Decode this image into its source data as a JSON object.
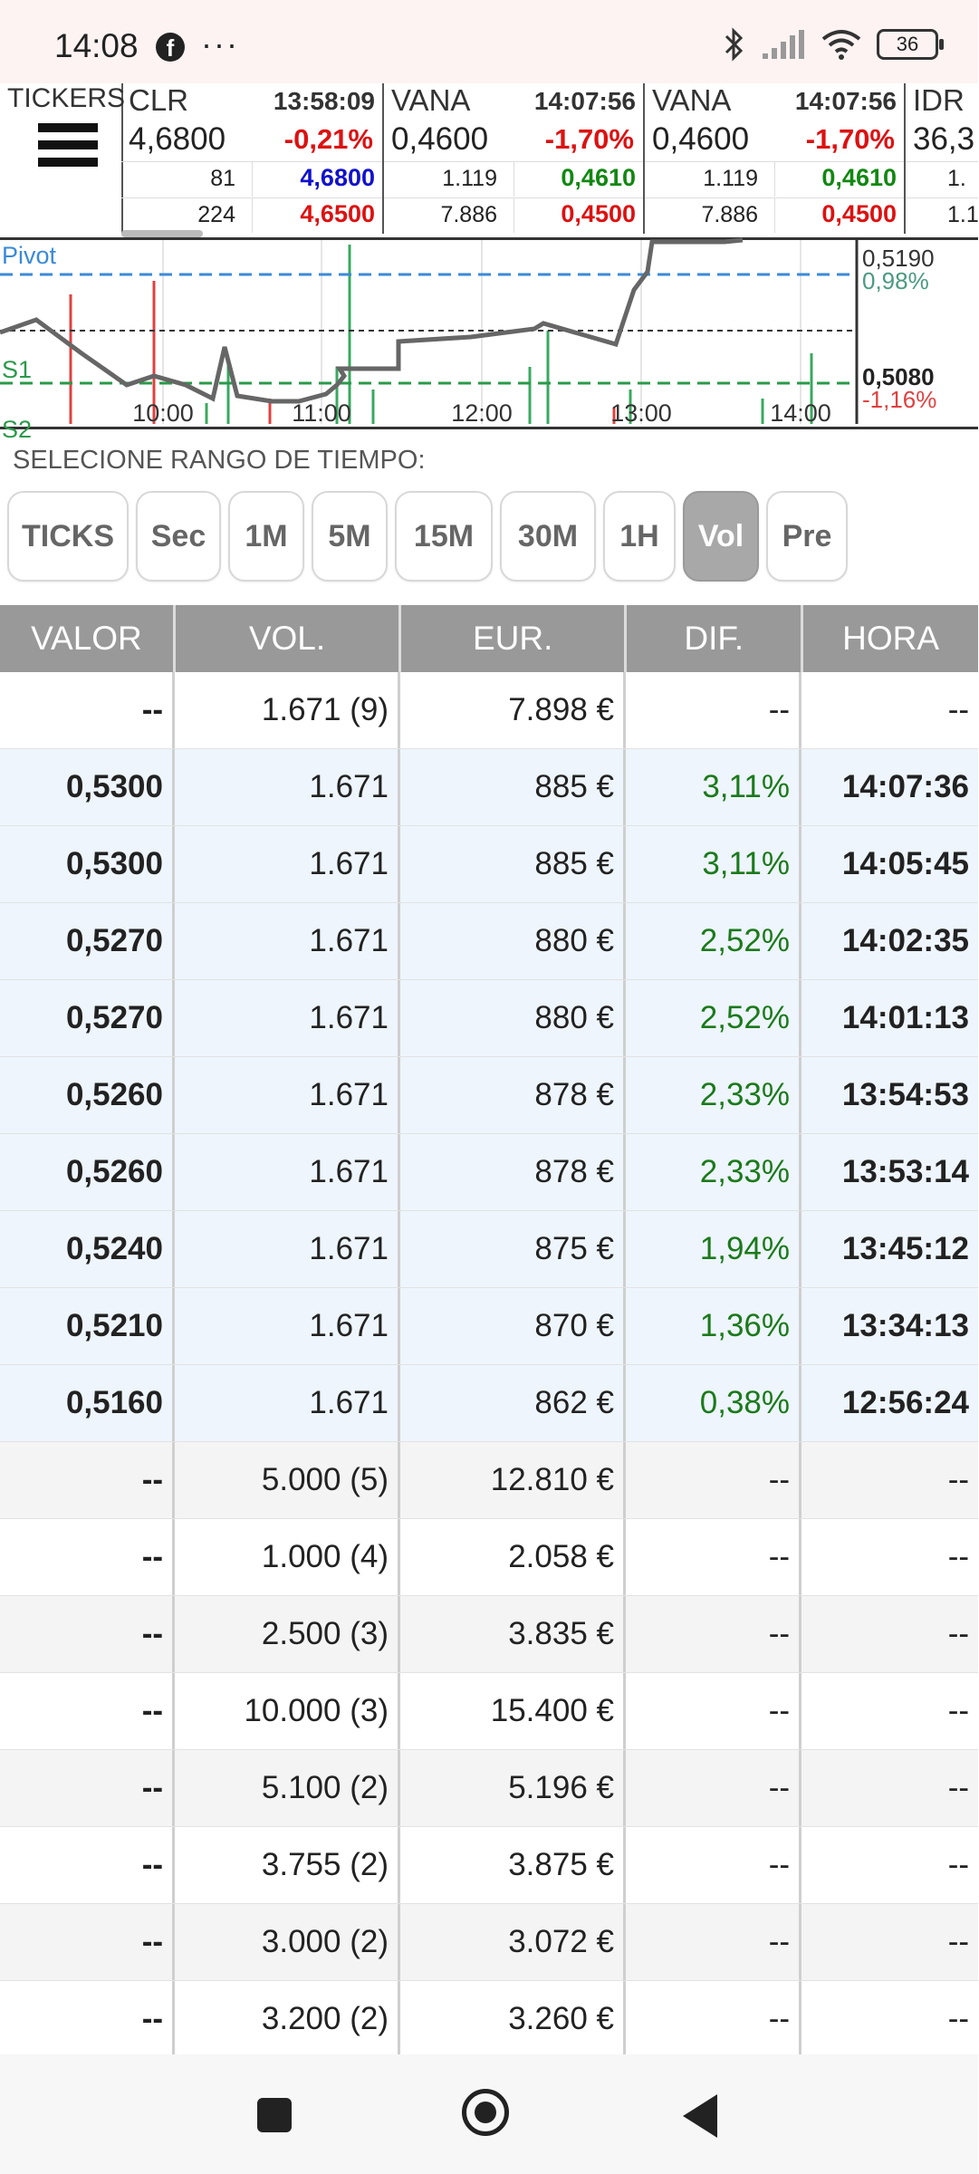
{
  "status_bar": {
    "time": "14:08",
    "notif_icon": "facebook-icon",
    "more": "···",
    "battery": "36"
  },
  "tickers": {
    "label": "TICKERS",
    "items": [
      {
        "symbol": "CLR",
        "time": "13:58:09",
        "price": "4,6800",
        "change": "-0,21%",
        "change_color": "#dd1111",
        "bid_vol": "81",
        "bid": "4,6800",
        "bid_color": "#1111cc",
        "ask_vol": "224",
        "ask": "4,6500",
        "ask_color": "#dd1111"
      },
      {
        "symbol": "VANA",
        "time": "14:07:56",
        "price": "0,4600",
        "change": "-1,70%",
        "change_color": "#dd1111",
        "bid_vol": "1.119",
        "bid": "0,4610",
        "bid_color": "#118811",
        "ask_vol": "7.886",
        "ask": "0,4500",
        "ask_color": "#dd1111"
      },
      {
        "symbol": "VANA",
        "time": "14:07:56",
        "price": "0,4600",
        "change": "-1,70%",
        "change_color": "#dd1111",
        "bid_vol": "1.119",
        "bid": "0,4610",
        "bid_color": "#118811",
        "ask_vol": "7.886",
        "ask": "0,4500",
        "ask_color": "#dd1111"
      },
      {
        "symbol": "IDR",
        "price": "36,3",
        "bid_vol": "1.",
        "ask_vol": "1.1"
      }
    ]
  },
  "chart": {
    "pivot_label": "Pivot",
    "s1_label": "S1",
    "s2_label": "S2",
    "x_labels": [
      "10:00",
      "11:00",
      "12:00",
      "13:00",
      "14:00"
    ],
    "right_top_value": "0,5190",
    "right_top_pct": "0,98%",
    "right_bottom_value": "0,5080",
    "right_bottom_pct": "-1,16%",
    "colors": {
      "pivot": "#3a8ad8",
      "support": "#2a9a4a",
      "line": "#555555",
      "neg": "#e04040",
      "pos": "#3aa860"
    }
  },
  "range": {
    "label": "SELECIONE RANGO DE TIEMPO:",
    "buttons": [
      "TICKS",
      "Sec",
      "1M",
      "5M",
      "15M",
      "30M",
      "1H",
      "Vol",
      "Pre"
    ],
    "active": "Vol"
  },
  "table": {
    "headers": [
      "VALOR",
      "VOL.",
      "EUR.",
      "DIF.",
      "HORA"
    ],
    "rows": [
      {
        "valor": "--",
        "vol": "1.671 (9)",
        "eur": "7.898 €",
        "dif": "--",
        "hora": "--"
      },
      {
        "valor": "0,5300",
        "vol": "1.671",
        "eur": "885 €",
        "dif": "3,11%",
        "hora": "14:07:36"
      },
      {
        "valor": "0,5300",
        "vol": "1.671",
        "eur": "885 €",
        "dif": "3,11%",
        "hora": "14:05:45"
      },
      {
        "valor": "0,5270",
        "vol": "1.671",
        "eur": "880 €",
        "dif": "2,52%",
        "hora": "14:02:35"
      },
      {
        "valor": "0,5270",
        "vol": "1.671",
        "eur": "880 €",
        "dif": "2,52%",
        "hora": "14:01:13"
      },
      {
        "valor": "0,5260",
        "vol": "1.671",
        "eur": "878 €",
        "dif": "2,33%",
        "hora": "13:54:53"
      },
      {
        "valor": "0,5260",
        "vol": "1.671",
        "eur": "878 €",
        "dif": "2,33%",
        "hora": "13:53:14"
      },
      {
        "valor": "0,5240",
        "vol": "1.671",
        "eur": "875 €",
        "dif": "1,94%",
        "hora": "13:45:12"
      },
      {
        "valor": "0,5210",
        "vol": "1.671",
        "eur": "870 €",
        "dif": "1,36%",
        "hora": "13:34:13"
      },
      {
        "valor": "0,5160",
        "vol": "1.671",
        "eur": "862 €",
        "dif": "0,38%",
        "hora": "12:56:24"
      },
      {
        "valor": "--",
        "vol": "5.000 (5)",
        "eur": "12.810 €",
        "dif": "--",
        "hora": "--"
      },
      {
        "valor": "--",
        "vol": "1.000 (4)",
        "eur": "2.058 €",
        "dif": "--",
        "hora": "--"
      },
      {
        "valor": "--",
        "vol": "2.500 (3)",
        "eur": "3.835 €",
        "dif": "--",
        "hora": "--"
      },
      {
        "valor": "--",
        "vol": "10.000 (3)",
        "eur": "15.400 €",
        "dif": "--",
        "hora": "--"
      },
      {
        "valor": "--",
        "vol": "5.100 (2)",
        "eur": "5.196 €",
        "dif": "--",
        "hora": "--"
      },
      {
        "valor": "--",
        "vol": "3.755 (2)",
        "eur": "3.875 €",
        "dif": "--",
        "hora": "--"
      },
      {
        "valor": "--",
        "vol": "3.000 (2)",
        "eur": "3.072 €",
        "dif": "--",
        "hora": "--"
      },
      {
        "valor": "--",
        "vol": "3.200 (2)",
        "eur": "3.260 €",
        "dif": "--",
        "hora": "--"
      }
    ]
  },
  "nav": {
    "recents": "square-icon",
    "home": "circle-icon",
    "back": "triangle-back-icon"
  }
}
